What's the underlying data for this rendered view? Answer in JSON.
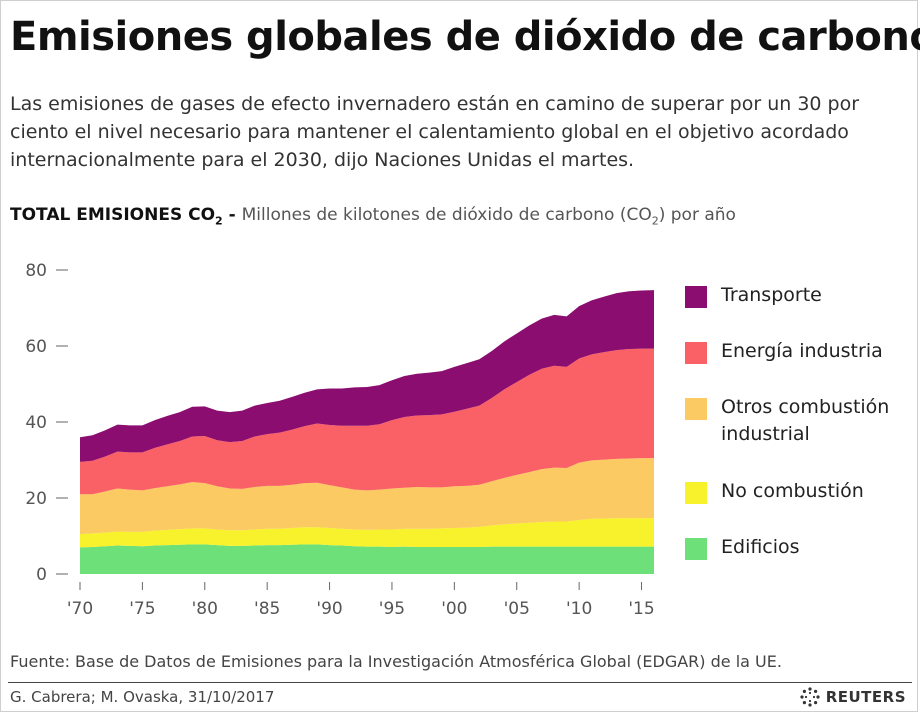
{
  "header": {
    "title": "Emisiones globales de dióxido de carbono",
    "subtitle": "Las emisiones de gases de efecto invernadero están en camino de superar por un 30 por ciento el nivel necesario para mantener el calentamiento global en el objetivo acordado internacionalmente para el 2030, dijo Naciones Unidas el martes.",
    "metric_strong": "TOTAL EMISIONES CO",
    "metric_strong_sub": "2",
    "metric_sep": " - ",
    "metric_desc": "Millones de kilotones de dióxido de carbono (CO",
    "metric_desc_sub": "2",
    "metric_desc_end": ") por año"
  },
  "chart_data": {
    "type": "area",
    "stacked": true,
    "x": [
      1970,
      1971,
      1972,
      1973,
      1974,
      1975,
      1976,
      1977,
      1978,
      1979,
      1980,
      1981,
      1982,
      1983,
      1984,
      1985,
      1986,
      1987,
      1988,
      1989,
      1990,
      1991,
      1992,
      1993,
      1994,
      1995,
      1996,
      1997,
      1998,
      1999,
      2000,
      2001,
      2002,
      2003,
      2004,
      2005,
      2006,
      2007,
      2008,
      2009,
      2010,
      2011,
      2012,
      2013,
      2014,
      2015,
      2016
    ],
    "xticks": [
      1970,
      1975,
      1980,
      1985,
      1990,
      1995,
      2000,
      2005,
      2010,
      2015
    ],
    "xtick_labels": [
      "'70",
      "'75",
      "'80",
      "'85",
      "'90",
      "'95",
      "'00",
      "'05",
      "'10",
      "'15"
    ],
    "xlim": [
      1970,
      2016
    ],
    "ylim": [
      0,
      80
    ],
    "yticks": [
      0,
      20,
      40,
      60,
      80
    ],
    "grid": false,
    "legend_position": "right",
    "series": [
      {
        "name": "Edificios",
        "color": "#6ee07a",
        "values": [
          7.0,
          7.1,
          7.3,
          7.5,
          7.4,
          7.3,
          7.5,
          7.6,
          7.7,
          7.8,
          7.8,
          7.6,
          7.4,
          7.4,
          7.5,
          7.6,
          7.6,
          7.7,
          7.8,
          7.8,
          7.6,
          7.5,
          7.3,
          7.2,
          7.2,
          7.1,
          7.2,
          7.1,
          7.1,
          7.1,
          7.1,
          7.1,
          7.1,
          7.2,
          7.2,
          7.2,
          7.2,
          7.2,
          7.2,
          7.2,
          7.2,
          7.2,
          7.2,
          7.2,
          7.2,
          7.2,
          7.2
        ]
      },
      {
        "name": "No combustión",
        "color": "#f7f22c",
        "values": [
          3.5,
          3.6,
          3.6,
          3.7,
          3.7,
          3.8,
          3.9,
          4.0,
          4.1,
          4.2,
          4.2,
          4.1,
          4.1,
          4.1,
          4.2,
          4.3,
          4.3,
          4.4,
          4.5,
          4.5,
          4.5,
          4.4,
          4.4,
          4.4,
          4.5,
          4.6,
          4.7,
          4.8,
          4.8,
          4.9,
          5.0,
          5.1,
          5.3,
          5.6,
          5.9,
          6.1,
          6.3,
          6.5,
          6.6,
          6.6,
          7.0,
          7.3,
          7.4,
          7.5,
          7.5,
          7.5,
          7.5
        ]
      },
      {
        "name": "Otros combustión industrial",
        "color": "#fbca62",
        "values": [
          10.5,
          10.3,
          10.8,
          11.3,
          11.1,
          10.9,
          11.2,
          11.5,
          11.8,
          12.2,
          11.9,
          11.4,
          11.0,
          10.9,
          11.2,
          11.3,
          11.3,
          11.4,
          11.6,
          11.7,
          11.3,
          10.9,
          10.5,
          10.4,
          10.5,
          10.8,
          10.8,
          11.0,
          10.9,
          10.8,
          11.0,
          11.0,
          11.1,
          11.6,
          12.2,
          12.8,
          13.3,
          13.9,
          14.2,
          14.1,
          15.1,
          15.4,
          15.5,
          15.6,
          15.7,
          15.8,
          15.8
        ]
      },
      {
        "name": "Energía industria",
        "color": "#fa6166",
        "values": [
          8.5,
          8.8,
          9.2,
          9.7,
          9.8,
          10.0,
          10.6,
          11.0,
          11.4,
          12.0,
          12.4,
          12.1,
          12.2,
          12.6,
          13.3,
          13.6,
          14.0,
          14.5,
          15.0,
          15.6,
          15.8,
          16.2,
          16.8,
          17.0,
          17.2,
          18.0,
          18.6,
          18.8,
          19.0,
          19.2,
          19.6,
          20.3,
          20.8,
          21.9,
          23.3,
          24.4,
          25.6,
          26.4,
          26.8,
          26.6,
          27.4,
          27.9,
          28.3,
          28.6,
          28.8,
          28.8,
          28.8
        ]
      },
      {
        "name": "Transporte",
        "color": "#8b0d70",
        "values": [
          6.5,
          6.7,
          6.9,
          7.1,
          7.1,
          7.1,
          7.3,
          7.5,
          7.6,
          7.8,
          7.8,
          7.8,
          7.9,
          8.0,
          8.1,
          8.2,
          8.4,
          8.6,
          8.8,
          9.0,
          9.6,
          9.8,
          10.1,
          10.2,
          10.3,
          10.5,
          10.8,
          11.0,
          11.2,
          11.4,
          11.8,
          12.0,
          12.2,
          12.4,
          12.6,
          12.8,
          13.0,
          13.2,
          13.4,
          13.3,
          13.8,
          14.2,
          14.6,
          15.0,
          15.2,
          15.3,
          15.4
        ]
      }
    ]
  },
  "legend": {
    "items": [
      {
        "label": "Transporte",
        "color": "#8b0d70"
      },
      {
        "label": "Energía industria",
        "color": "#fa6166"
      },
      {
        "label": "Otros combustión industrial",
        "color": "#fbca62"
      },
      {
        "label": "No combustión",
        "color": "#f7f22c"
      },
      {
        "label": "Edificios",
        "color": "#6ee07a"
      }
    ]
  },
  "footer": {
    "source": "Fuente: Base de Datos de Emisiones para la Investigación Atmosférica Global (EDGAR) de la UE.",
    "credit": "G. Cabrera; M. Ovaska, 31/10/2017",
    "brand": "REUTERS"
  }
}
